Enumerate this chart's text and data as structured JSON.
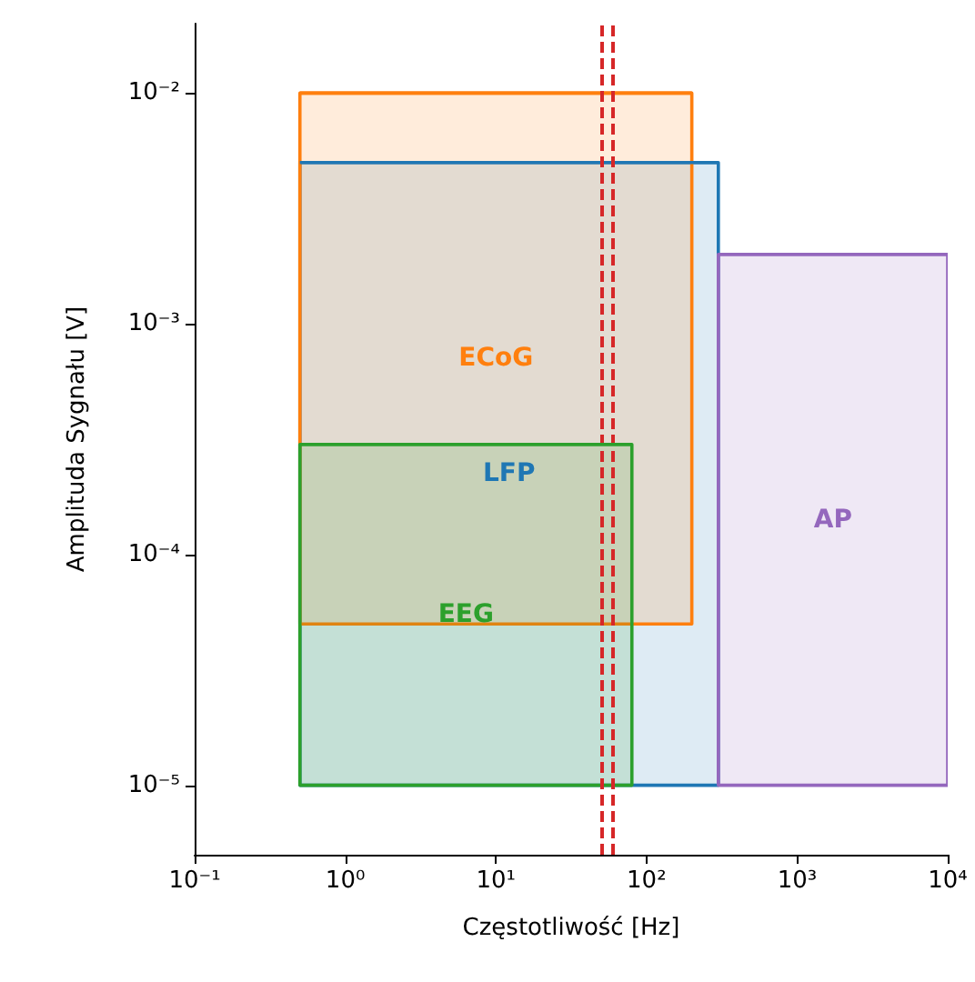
{
  "chart_data": {
    "type": "line",
    "xlabel": "Częstotliwość [Hz]",
    "ylabel": "Amplituda Sygnału [V]",
    "log": "xy",
    "grid": false,
    "legend": false,
    "xlim": [
      0.1,
      10000
    ],
    "xticks": [
      {
        "value": 0.1,
        "label": "10⁻¹"
      },
      {
        "value": 1,
        "label": "10⁰"
      },
      {
        "value": 10,
        "label": "10¹"
      },
      {
        "value": 100,
        "label": "10²"
      },
      {
        "value": 1000,
        "label": "10³"
      },
      {
        "value": 10000,
        "label": "10⁴"
      }
    ],
    "ylim": [
      5e-06,
      0.02
    ],
    "yticks": [
      {
        "value": 1e-05,
        "label": "10⁻⁵"
      },
      {
        "value": 0.0001,
        "label": "10⁻⁴"
      },
      {
        "value": 0.001,
        "label": "10⁻³"
      },
      {
        "value": 0.01,
        "label": "10⁻²"
      }
    ],
    "series": [
      {
        "name": "LFP",
        "color": "#1f77b4",
        "x": [
          0.5,
          300
        ],
        "values": [
          0.005,
          0.005
        ],
        "upper": [
          0.005,
          0.005
        ],
        "lower": [
          1e-05,
          1e-05
        ]
      },
      {
        "name": "ECoG",
        "color": "#ff7f0e",
        "x": [
          0.5,
          200
        ],
        "values": [
          0.01,
          0.01
        ],
        "upper": [
          0.01,
          0.01
        ],
        "lower": [
          5e-05,
          5e-05
        ]
      },
      {
        "name": "EEG",
        "color": "#2ca02c",
        "x": [
          0.5,
          80
        ],
        "values": [
          0.0003,
          0.0003
        ],
        "upper": [
          0.0003,
          0.0003
        ],
        "lower": [
          1e-05,
          1e-05
        ]
      },
      {
        "name": "AP",
        "color": "#9467bd",
        "x": [
          300,
          10000
        ],
        "values": [
          0.002,
          0.002
        ],
        "upper": [
          0.002,
          0.002
        ],
        "lower": [
          1e-05,
          1e-05
        ]
      }
    ],
    "ref_lines": [
      {
        "axis": "x",
        "value": 50,
        "color": "#d62728",
        "line_style": "dashed"
      },
      {
        "axis": "x",
        "value": 60,
        "color": "#d62728",
        "line_style": "dashed"
      }
    ]
  }
}
